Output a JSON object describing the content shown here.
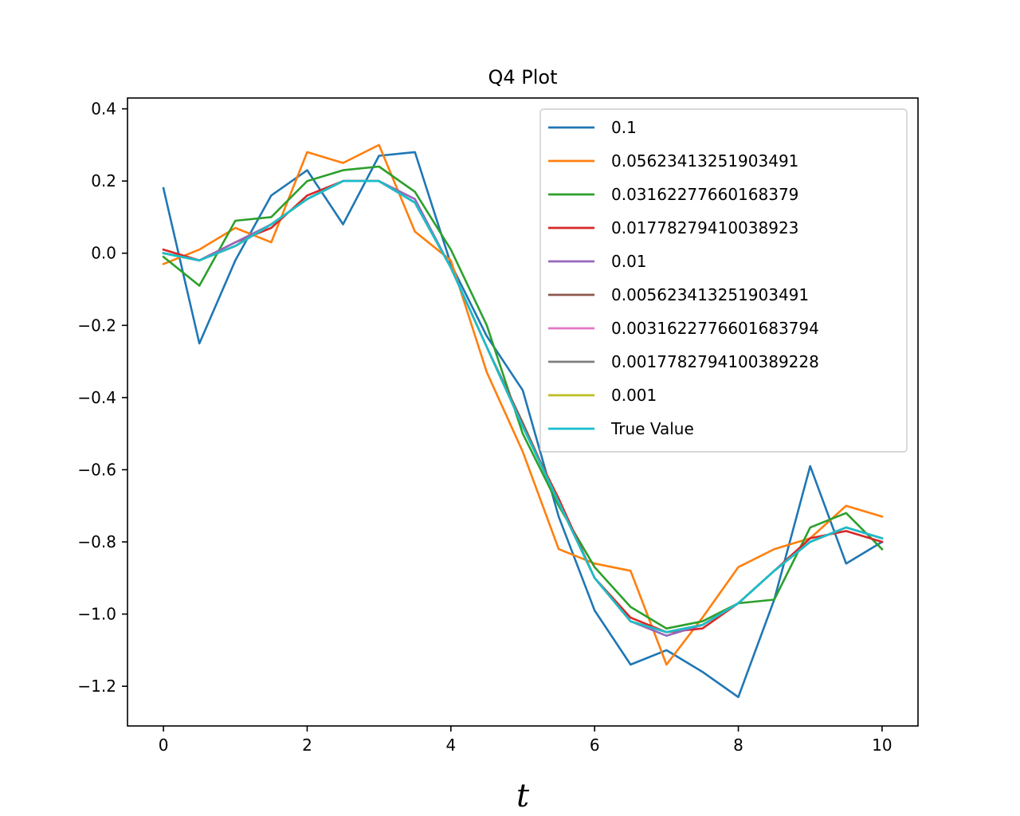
{
  "chart_data": {
    "type": "line",
    "title": "Q4 Plot",
    "xlabel": "t",
    "ylabel": "",
    "xlim": [
      -0.5,
      10.5
    ],
    "ylim": [
      -1.31,
      0.43
    ],
    "xticks": [
      0,
      2,
      4,
      6,
      8,
      10
    ],
    "xtick_labels": [
      "0",
      "2",
      "4",
      "6",
      "8",
      "10"
    ],
    "yticks": [
      0.4,
      0.2,
      0.0,
      -0.2,
      -0.4,
      -0.6,
      -0.8,
      -1.0,
      -1.2
    ],
    "ytick_labels": [
      "0.4",
      "0.2",
      "0.0",
      "−0.2",
      "−0.4",
      "−0.6",
      "−0.8",
      "−1.0",
      "−1.2"
    ],
    "grid": false,
    "legend_position": "top-right",
    "x": [
      0,
      0.5,
      1,
      1.5,
      2,
      2.5,
      3,
      3.5,
      4,
      4.5,
      5,
      5.5,
      6,
      6.5,
      7,
      7.5,
      8,
      8.5,
      9,
      9.5,
      10
    ],
    "series": [
      {
        "name": "0.1",
        "color": "#1f77b4",
        "values": [
          0.18,
          -0.25,
          -0.02,
          0.16,
          0.23,
          0.08,
          0.27,
          0.28,
          -0.03,
          -0.23,
          -0.38,
          -0.73,
          -0.99,
          -1.14,
          -1.1,
          -1.16,
          -1.23,
          -0.96,
          -0.59,
          -0.86,
          -0.8
        ]
      },
      {
        "name": "0.05623413251903491",
        "color": "#ff7f0e",
        "values": [
          -0.03,
          0.01,
          0.07,
          0.03,
          0.28,
          0.25,
          0.3,
          0.06,
          -0.02,
          -0.33,
          -0.55,
          -0.82,
          -0.86,
          -0.88,
          -1.14,
          -1.01,
          -0.87,
          -0.82,
          -0.79,
          -0.7,
          -0.73
        ]
      },
      {
        "name": "0.03162277660168379",
        "color": "#2ca02c",
        "values": [
          -0.01,
          -0.09,
          0.09,
          0.1,
          0.2,
          0.23,
          0.24,
          0.17,
          0.01,
          -0.2,
          -0.5,
          -0.7,
          -0.87,
          -0.98,
          -1.04,
          -1.02,
          -0.97,
          -0.96,
          -0.76,
          -0.72,
          -0.82
        ]
      },
      {
        "name": "0.01778279410038923",
        "color": "#d62728",
        "values": [
          0.01,
          -0.02,
          0.03,
          0.07,
          0.16,
          0.2,
          0.2,
          0.14,
          -0.04,
          -0.26,
          -0.48,
          -0.68,
          -0.9,
          -1.01,
          -1.05,
          -1.04,
          -0.97,
          -0.88,
          -0.79,
          -0.77,
          -0.8
        ]
      },
      {
        "name": "0.01",
        "color": "#9467bd",
        "values": [
          0.0,
          -0.02,
          0.03,
          0.08,
          0.15,
          0.2,
          0.2,
          0.15,
          -0.04,
          -0.26,
          -0.48,
          -0.69,
          -0.9,
          -1.02,
          -1.06,
          -1.03,
          -0.97,
          -0.88,
          -0.8,
          -0.76,
          -0.79
        ]
      },
      {
        "name": "0.005623413251903491",
        "color": "#8c564b",
        "values": [
          0.0,
          -0.02,
          0.02,
          0.08,
          0.15,
          0.2,
          0.2,
          0.14,
          -0.04,
          -0.26,
          -0.47,
          -0.69,
          -0.9,
          -1.02,
          -1.05,
          -1.03,
          -0.97,
          -0.88,
          -0.8,
          -0.76,
          -0.79
        ]
      },
      {
        "name": "0.0031622776601683794",
        "color": "#e377c2",
        "values": [
          0.0,
          -0.02,
          0.02,
          0.08,
          0.15,
          0.2,
          0.2,
          0.14,
          -0.04,
          -0.26,
          -0.48,
          -0.69,
          -0.9,
          -1.02,
          -1.05,
          -1.03,
          -0.97,
          -0.88,
          -0.8,
          -0.76,
          -0.79
        ]
      },
      {
        "name": "0.0017782794100389228",
        "color": "#7f7f7f",
        "values": [
          0.0,
          -0.02,
          0.02,
          0.08,
          0.15,
          0.2,
          0.2,
          0.14,
          -0.04,
          -0.26,
          -0.48,
          -0.69,
          -0.9,
          -1.02,
          -1.05,
          -1.03,
          -0.97,
          -0.88,
          -0.8,
          -0.76,
          -0.79
        ]
      },
      {
        "name": "0.001",
        "color": "#bcbd22",
        "values": [
          0.0,
          -0.02,
          0.02,
          0.08,
          0.15,
          0.2,
          0.2,
          0.14,
          -0.04,
          -0.26,
          -0.48,
          -0.69,
          -0.9,
          -1.02,
          -1.05,
          -1.03,
          -0.97,
          -0.88,
          -0.8,
          -0.76,
          -0.79
        ]
      },
      {
        "name": "True Value",
        "color": "#17becf",
        "values": [
          0.0,
          -0.02,
          0.02,
          0.08,
          0.15,
          0.2,
          0.2,
          0.14,
          -0.04,
          -0.26,
          -0.48,
          -0.69,
          -0.9,
          -1.02,
          -1.05,
          -1.03,
          -0.97,
          -0.88,
          -0.8,
          -0.76,
          -0.79
        ]
      }
    ]
  }
}
